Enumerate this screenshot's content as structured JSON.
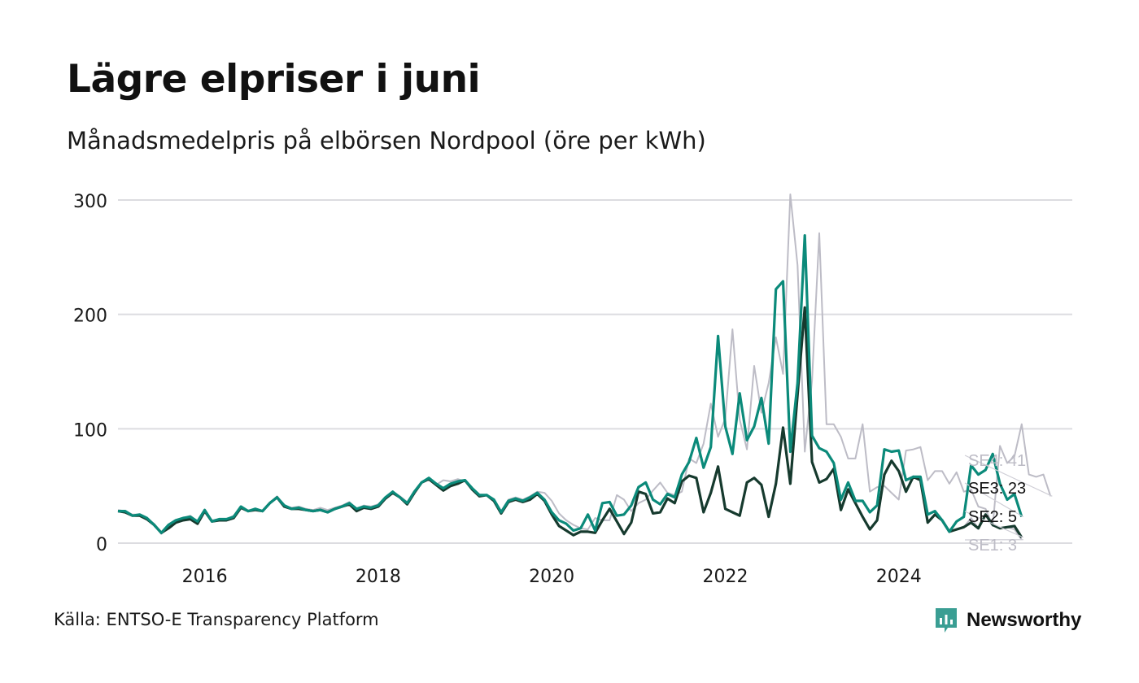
{
  "title": "Lägre elpriser i juni",
  "subtitle": "Månadsmedelpris på elbörsen Nordpool (öre per kWh)",
  "source": "Källa: ENTSO-E Transparency Platform",
  "brand": {
    "name": "Newsworthy",
    "color": "#3a9e93"
  },
  "chart_data": {
    "type": "line",
    "title": "Lägre elpriser i juni",
    "subtitle": "Månadsmedelpris på elbörsen Nordpool (öre per kWh)",
    "ylabel": "",
    "xlabel": "",
    "ylim": [
      0,
      300
    ],
    "xlim": [
      "2015-01",
      "2025-12"
    ],
    "y_ticks": [
      0,
      100,
      200,
      300
    ],
    "x_ticks": [
      "2016",
      "2018",
      "2020",
      "2022",
      "2024"
    ],
    "grid": "horizontal",
    "x_start": "2015-01",
    "x_end": "2025-06",
    "series": [
      {
        "name": "SE4",
        "label": "SE4: 41",
        "last": 41,
        "color": "#bdbcc6",
        "values": [
          29,
          28,
          25,
          25,
          22,
          17,
          8,
          14,
          20,
          22,
          24,
          19,
          29,
          20,
          21,
          21,
          24,
          32,
          28,
          29,
          28,
          35,
          41,
          33,
          31,
          32,
          30,
          29,
          31,
          29,
          31,
          33,
          36,
          30,
          33,
          32,
          34,
          40,
          45,
          41,
          36,
          44,
          53,
          57,
          51,
          55,
          54,
          56,
          54,
          47,
          42,
          42,
          38,
          28,
          38,
          40,
          38,
          41,
          45,
          44,
          37,
          26,
          20,
          16,
          13,
          12,
          22,
          20,
          20,
          42,
          38,
          28,
          35,
          38,
          46,
          53,
          44,
          42,
          45,
          74,
          70,
          87,
          122,
          93,
          109,
          187,
          108,
          82,
          155,
          114,
          140,
          180,
          148,
          305,
          243,
          80,
          142,
          271,
          104,
          104,
          93,
          74,
          74,
          104,
          45,
          49,
          50,
          44,
          38,
          81,
          82,
          84,
          55,
          63,
          63,
          52,
          62,
          45,
          47,
          32,
          30,
          15,
          85,
          70,
          76,
          104,
          60,
          58,
          60,
          41
        ]
      },
      {
        "name": "SE3",
        "label": "SE3: 23",
        "last": 23,
        "color": "#0b8a7a",
        "values": [
          28,
          28,
          24,
          25,
          22,
          16,
          9,
          16,
          20,
          22,
          23,
          19,
          29,
          19,
          21,
          21,
          23,
          32,
          28,
          30,
          28,
          35,
          40,
          33,
          30,
          31,
          29,
          28,
          29,
          27,
          30,
          32,
          35,
          30,
          32,
          31,
          33,
          40,
          45,
          40,
          35,
          45,
          53,
          57,
          52,
          48,
          52,
          54,
          55,
          48,
          42,
          42,
          38,
          27,
          37,
          39,
          37,
          40,
          44,
          38,
          27,
          20,
          17,
          11,
          13,
          25,
          11,
          35,
          36,
          24,
          25,
          33,
          49,
          53,
          38,
          34,
          43,
          40,
          60,
          71,
          92,
          66,
          84,
          181,
          102,
          78,
          131,
          90,
          102,
          127,
          87,
          222,
          229,
          80,
          140,
          269,
          94,
          83,
          80,
          70,
          38,
          53,
          37,
          37,
          27,
          33,
          82,
          80,
          81,
          55,
          58,
          58,
          25,
          28,
          20,
          10,
          19,
          23,
          68,
          60,
          64,
          78,
          52,
          38,
          43,
          23
        ]
      },
      {
        "name": "SE2",
        "label": "SE2: 5",
        "last": 5,
        "color": "#163a2e",
        "values": [
          28,
          27,
          24,
          24,
          21,
          16,
          9,
          13,
          18,
          20,
          21,
          17,
          28,
          19,
          20,
          20,
          22,
          31,
          28,
          29,
          28,
          35,
          40,
          32,
          30,
          30,
          29,
          28,
          29,
          27,
          30,
          32,
          34,
          28,
          31,
          30,
          32,
          39,
          44,
          40,
          34,
          44,
          53,
          56,
          51,
          46,
          50,
          52,
          55,
          47,
          41,
          42,
          37,
          26,
          36,
          38,
          36,
          38,
          43,
          37,
          25,
          15,
          11,
          7,
          10,
          10,
          9,
          20,
          30,
          19,
          8,
          18,
          45,
          43,
          26,
          27,
          39,
          35,
          54,
          59,
          57,
          27,
          44,
          67,
          30,
          27,
          24,
          53,
          57,
          51,
          23,
          52,
          101,
          52,
          130,
          206,
          71,
          53,
          56,
          65,
          29,
          47,
          35,
          23,
          12,
          20,
          60,
          72,
          63,
          45,
          58,
          55,
          18,
          25,
          20,
          10,
          12,
          14,
          18,
          13,
          25,
          16,
          13,
          14,
          15,
          5
        ]
      },
      {
        "name": "SE1",
        "label": "SE1: 3",
        "last": 3,
        "color": "#bdbcc6",
        "values": [
          28,
          27,
          24,
          24,
          21,
          16,
          9,
          13,
          18,
          20,
          21,
          17,
          28,
          19,
          20,
          20,
          22,
          31,
          28,
          29,
          28,
          35,
          40,
          32,
          30,
          30,
          29,
          28,
          29,
          27,
          30,
          32,
          34,
          28,
          31,
          30,
          32,
          39,
          44,
          40,
          34,
          44,
          53,
          56,
          51,
          46,
          50,
          52,
          55,
          47,
          41,
          42,
          37,
          26,
          36,
          38,
          36,
          38,
          43,
          37,
          25,
          15,
          11,
          7,
          10,
          10,
          9,
          20,
          30,
          19,
          8,
          18,
          45,
          43,
          26,
          27,
          39,
          35,
          54,
          59,
          57,
          27,
          44,
          67,
          30,
          27,
          24,
          53,
          57,
          51,
          23,
          52,
          101,
          52,
          130,
          206,
          71,
          53,
          56,
          65,
          29,
          47,
          35,
          23,
          12,
          20,
          60,
          72,
          63,
          45,
          58,
          55,
          18,
          25,
          20,
          10,
          12,
          14,
          22,
          13,
          25,
          16,
          13,
          14,
          12,
          3
        ]
      }
    ]
  }
}
